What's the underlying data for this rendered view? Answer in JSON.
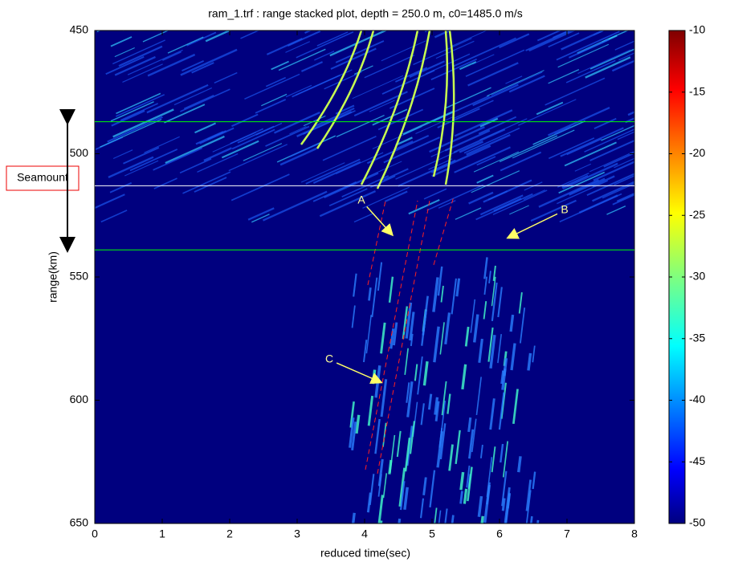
{
  "chart_data": {
    "type": "heatmap",
    "title": "ram_1.trf : range stacked plot, depth =   250.0 m, c0=1485.0 m/s",
    "x_label": "reduced time(sec)",
    "y_label": "range(km)",
    "xlim": [
      0,
      8
    ],
    "xticks": [
      0,
      1,
      2,
      3,
      4,
      5,
      6,
      7,
      8
    ],
    "ylim": [
      450,
      650
    ],
    "yticks": [
      450,
      500,
      550,
      600,
      650
    ],
    "y_inverted": true,
    "colormap": "jet",
    "clim": [
      -50,
      -10
    ],
    "cticks": [
      -10,
      -15,
      -20,
      -25,
      -30,
      -35,
      -40,
      -45,
      -50
    ],
    "hlines": [
      {
        "value": 487,
        "color": "#00ff00"
      },
      {
        "value": 513,
        "color": "#ffffff"
      },
      {
        "value": 539,
        "color": "#00ff00"
      }
    ],
    "annotations": [
      "A",
      "B",
      "C",
      "Seamount"
    ]
  }
}
